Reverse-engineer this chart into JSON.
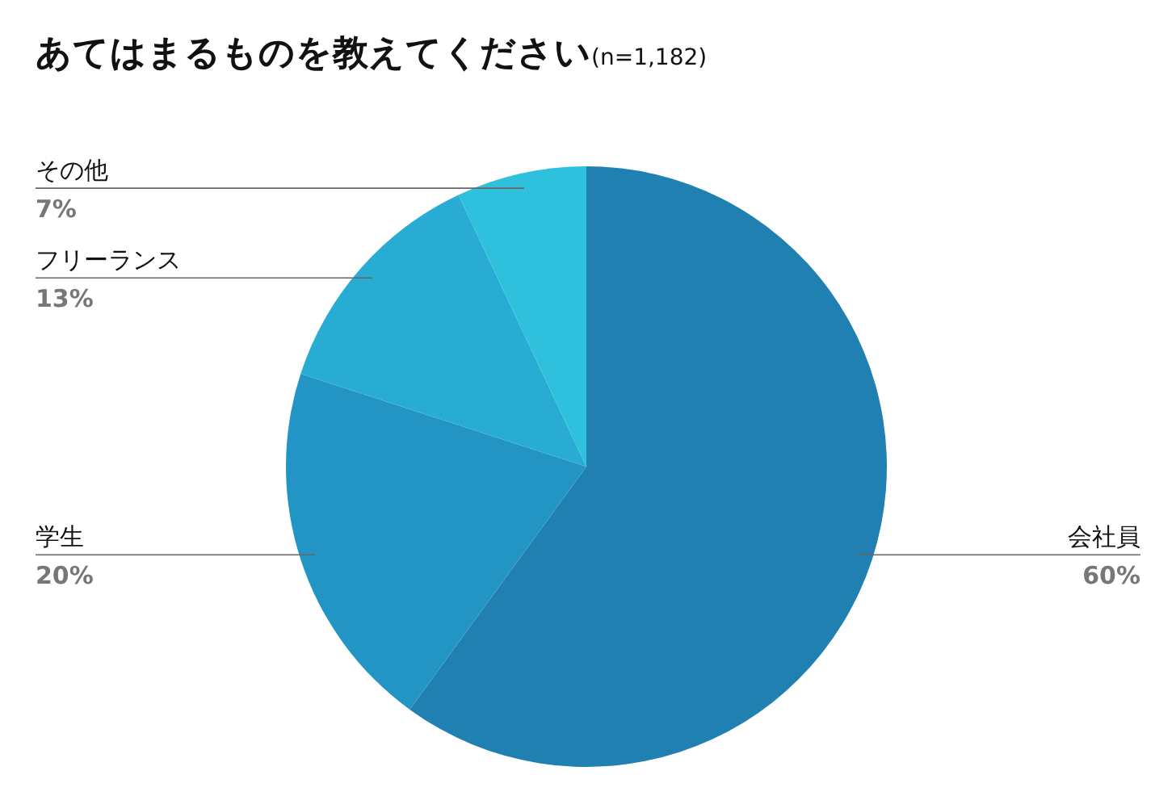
{
  "chart_data": {
    "type": "pie",
    "title": "あてはまるものを教えてください",
    "subtitle": "(n=1,182)",
    "categories": [
      "会社員",
      "学生",
      "フリーランス",
      "その他"
    ],
    "values": [
      60,
      20,
      13,
      7
    ],
    "value_labels": [
      "60%",
      "20%",
      "13%",
      "7%"
    ],
    "colors": [
      "#1f80b1",
      "#2395c5",
      "#29acd3",
      "#2ec0dd"
    ]
  }
}
